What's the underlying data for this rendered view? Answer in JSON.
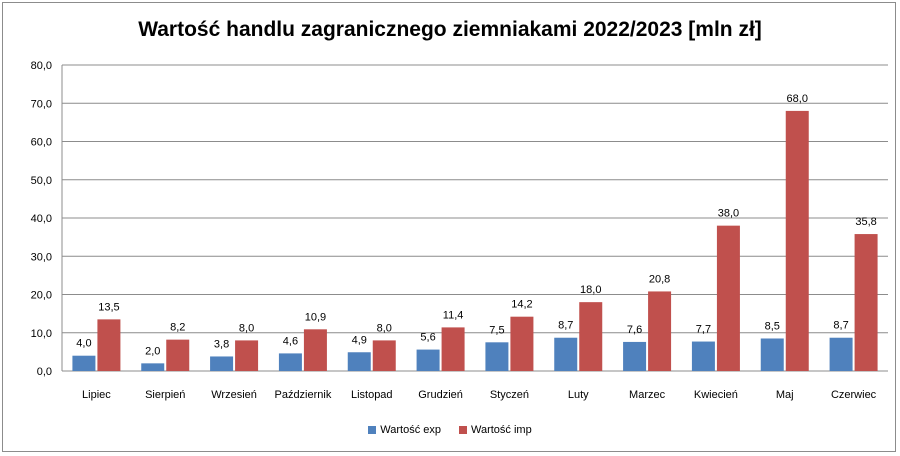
{
  "chart_data": {
    "type": "bar",
    "title": "Wartość handlu zagranicznego ziemniakami 2022/2023  [mln zł]",
    "categories": [
      "Lipiec",
      "Sierpień",
      "Wrzesień",
      "Październik",
      "Listopad",
      "Grudzień",
      "Styczeń",
      "Luty",
      "Marzec",
      "Kwiecień",
      "Maj",
      "Czerwiec"
    ],
    "series": [
      {
        "name": "Wartość exp",
        "color": "#4f81bd",
        "values": [
          4.0,
          2.0,
          3.8,
          4.6,
          4.9,
          5.6,
          7.5,
          8.7,
          7.6,
          7.7,
          8.5,
          8.7
        ]
      },
      {
        "name": "Wartość imp",
        "color": "#c0504d",
        "values": [
          13.5,
          8.2,
          8.0,
          10.9,
          8.0,
          11.4,
          14.2,
          18.0,
          20.8,
          38.0,
          68.0,
          35.8
        ]
      }
    ],
    "ylim": [
      0,
      80
    ],
    "yticks": [
      "0,0",
      "10,0",
      "20,0",
      "30,0",
      "40,0",
      "50,0",
      "60,0",
      "70,0",
      "80,0"
    ],
    "grid": true,
    "legend_position": "bottom",
    "xlabel": "",
    "ylabel": ""
  }
}
